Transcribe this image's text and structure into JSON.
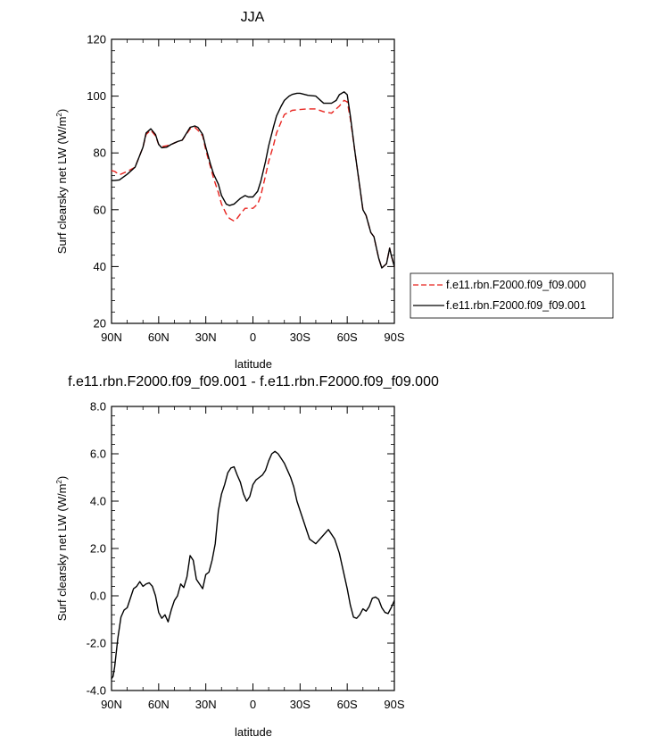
{
  "chart_data": [
    {
      "type": "line",
      "title": "JJA",
      "xlabel": "latitude",
      "ylabel": "Surf clearsky net LW (W/m",
      "ylabel_sup": "2",
      "ylabel_close": ")",
      "xlim": [
        90,
        -90
      ],
      "ylim": [
        20,
        120
      ],
      "xticks": [
        90,
        60,
        30,
        0,
        -30,
        -60,
        -90
      ],
      "xtick_labels": [
        "90N",
        "60N",
        "30N",
        "0",
        "30S",
        "60S",
        "90S"
      ],
      "yticks": [
        20,
        40,
        60,
        80,
        100,
        120
      ],
      "ytick_labels": [
        "20",
        "40",
        "60",
        "80",
        "100",
        "120"
      ],
      "grid": false,
      "legend": "outside-right",
      "series": [
        {
          "name": "f.e11.rbn.F2000.f09_f09.000",
          "color": "#e8231e",
          "dash": "dashed",
          "x": [
            90,
            88,
            85,
            80,
            75,
            70,
            68,
            65,
            62,
            60,
            58,
            55,
            52,
            50,
            48,
            45,
            40,
            37,
            35,
            32,
            30,
            27,
            25,
            22,
            20,
            17,
            15,
            12,
            10,
            8,
            5,
            3,
            0,
            -3,
            -5,
            -8,
            -10,
            -13,
            -15,
            -18,
            -20,
            -25,
            -30,
            -35,
            -40,
            -45,
            -50,
            -53,
            -55,
            -58,
            -60,
            -62,
            -65,
            -68,
            -70,
            -72,
            -75,
            -77,
            -80,
            -82,
            -85,
            -87,
            -88,
            -90
          ],
          "values": [
            73.8,
            73.5,
            72.3,
            73.5,
            75.0,
            82.0,
            86.5,
            88.0,
            86.0,
            83.0,
            82.2,
            82.5,
            83.0,
            83.5,
            84.0,
            84.5,
            88.5,
            89.0,
            88.0,
            86.0,
            81.0,
            75.0,
            71.0,
            66.0,
            62.0,
            58.5,
            57.0,
            56.0,
            57.0,
            58.5,
            60.5,
            60.5,
            60.5,
            62.0,
            65.0,
            72.0,
            77.0,
            82.5,
            87.0,
            91.0,
            93.5,
            95.0,
            95.3,
            95.5,
            95.5,
            94.5,
            94.0,
            95.5,
            96.5,
            98.5,
            98.0,
            92.0,
            80.0,
            68.0,
            60.0,
            58.0,
            52.0,
            50.5,
            43.0,
            39.5,
            41.0,
            46.5,
            44.0,
            40.0
          ]
        },
        {
          "name": "f.e11.rbn.F2000.f09_f09.001",
          "color": "#000000",
          "dash": "solid",
          "x": [
            90,
            88,
            85,
            80,
            75,
            70,
            68,
            65,
            62,
            60,
            58,
            55,
            52,
            50,
            48,
            45,
            40,
            37,
            35,
            32,
            30,
            27,
            25,
            22,
            20,
            17,
            15,
            12,
            10,
            8,
            5,
            3,
            0,
            -3,
            -5,
            -8,
            -10,
            -13,
            -15,
            -18,
            -20,
            -23,
            -25,
            -28,
            -30,
            -35,
            -40,
            -45,
            -50,
            -53,
            -55,
            -58,
            -60,
            -62,
            -65,
            -68,
            -70,
            -72,
            -75,
            -77,
            -80,
            -82,
            -85,
            -87,
            -88,
            -90
          ],
          "values": [
            70.3,
            70.3,
            70.5,
            72.5,
            75.0,
            82.0,
            87.0,
            88.5,
            86.5,
            83.0,
            81.8,
            82.0,
            83.0,
            83.5,
            84.0,
            84.5,
            89.0,
            89.5,
            89.0,
            86.5,
            82.0,
            76.0,
            72.5,
            69.0,
            65.0,
            62.0,
            61.5,
            62.0,
            63.0,
            64.0,
            65.0,
            64.5,
            64.5,
            66.5,
            70.0,
            77.0,
            82.5,
            89.0,
            93.0,
            96.5,
            98.5,
            100.0,
            100.6,
            101.0,
            101.0,
            100.3,
            100.0,
            97.5,
            97.5,
            98.5,
            100.5,
            101.5,
            100.5,
            93.0,
            80.0,
            68.0,
            60.0,
            58.0,
            52.0,
            50.5,
            43.0,
            39.5,
            41.0,
            46.5,
            44.0,
            40.0
          ]
        }
      ]
    },
    {
      "type": "line",
      "title": "f.e11.rbn.F2000.f09_f09.001 - f.e11.rbn.F2000.f09_f09.000",
      "xlabel": "latitude",
      "ylabel": "Surf clearsky net LW (W/m",
      "ylabel_sup": "2",
      "ylabel_close": ")",
      "xlim": [
        90,
        -90
      ],
      "ylim": [
        -4.0,
        8.0
      ],
      "xticks": [
        90,
        60,
        30,
        0,
        -30,
        -60,
        -90
      ],
      "xtick_labels": [
        "90N",
        "60N",
        "30N",
        "0",
        "30S",
        "60S",
        "90S"
      ],
      "yticks": [
        -4.0,
        -2.0,
        0.0,
        2.0,
        4.0,
        6.0,
        8.0
      ],
      "ytick_labels": [
        "-4.0",
        "-2.0",
        "0.0",
        "2.0",
        "4.0",
        "6.0",
        "8.0"
      ],
      "grid": false,
      "series": [
        {
          "color": "#000000",
          "dash": "solid",
          "x": [
            90,
            89,
            88,
            86,
            84,
            82,
            80,
            78,
            76,
            74,
            72,
            70,
            68,
            66,
            64,
            62,
            60,
            58,
            56,
            54,
            52,
            50,
            48,
            46,
            44,
            42,
            40,
            38,
            36,
            35,
            34,
            32,
            30,
            28,
            26,
            24,
            22,
            20,
            18,
            16,
            14,
            12,
            10,
            8,
            6,
            4,
            2,
            0,
            -2,
            -4,
            -6,
            -8,
            -10,
            -12,
            -14,
            -16,
            -18,
            -20,
            -22,
            -24,
            -26,
            -28,
            -30,
            -33,
            -36,
            -40,
            -44,
            -48,
            -52,
            -55,
            -57,
            -60,
            -62,
            -64,
            -66,
            -68,
            -70,
            -72,
            -74,
            -76,
            -78,
            -80,
            -82,
            -84,
            -86,
            -88,
            -90
          ],
          "values": [
            -3.5,
            -3.4,
            -3.0,
            -1.8,
            -0.9,
            -0.6,
            -0.5,
            -0.1,
            0.3,
            0.4,
            0.6,
            0.4,
            0.5,
            0.55,
            0.4,
            0.0,
            -0.7,
            -0.95,
            -0.8,
            -1.1,
            -0.6,
            -0.2,
            0.0,
            0.5,
            0.35,
            0.8,
            1.7,
            1.5,
            0.7,
            0.6,
            0.5,
            0.3,
            0.9,
            1.0,
            1.5,
            2.2,
            3.6,
            4.3,
            4.7,
            5.2,
            5.4,
            5.45,
            5.1,
            4.8,
            4.3,
            4.0,
            4.2,
            4.7,
            4.9,
            5.0,
            5.1,
            5.3,
            5.7,
            6.0,
            6.1,
            6.0,
            5.8,
            5.6,
            5.3,
            5.0,
            4.6,
            4.0,
            3.6,
            3.0,
            2.4,
            2.2,
            2.5,
            2.8,
            2.4,
            1.8,
            1.2,
            0.3,
            -0.4,
            -0.9,
            -0.95,
            -0.8,
            -0.55,
            -0.65,
            -0.45,
            -0.1,
            -0.05,
            -0.15,
            -0.5,
            -0.7,
            -0.75,
            -0.5,
            -0.2
          ]
        }
      ]
    }
  ]
}
